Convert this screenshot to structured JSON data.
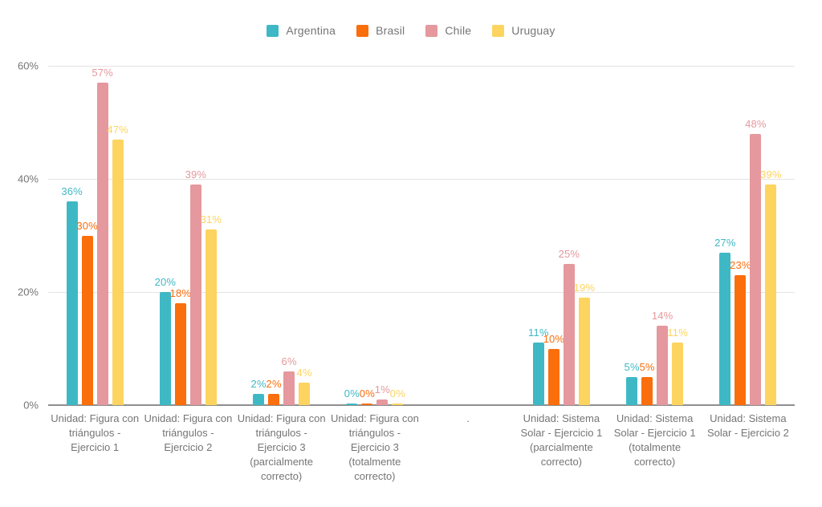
{
  "chart_data": {
    "type": "bar",
    "title": "",
    "xlabel": "",
    "ylabel": "",
    "ylim": [
      0,
      60
    ],
    "grid": true,
    "legend_position": "top",
    "value_suffix": "%",
    "yticks": [
      {
        "label": "0%",
        "value": 0
      },
      {
        "label": "20%",
        "value": 20
      },
      {
        "label": "40%",
        "value": 40
      },
      {
        "label": "60%",
        "value": 60
      }
    ],
    "categories": [
      "Unidad: Figura con triángulos - Ejercicio 1",
      "Unidad: Figura con triángulos - Ejercicio 2",
      "Unidad: Figura con triángulos - Ejercicio 3 (parcialmente correcto)",
      "Unidad: Figura con triángulos - Ejercicio 3 (totalmente correcto)",
      ".",
      "Unidad: Sistema Solar - Ejercicio 1 (parcialmente correcto)",
      "Unidad: Sistema Solar - Ejercicio 1 (totalmente correcto)",
      "Unidad: Sistema Solar - Ejercicio 2"
    ],
    "series": [
      {
        "name": "Argentina",
        "color": "#3fb8c5",
        "values": [
          36,
          20,
          2,
          0,
          null,
          11,
          5,
          27
        ]
      },
      {
        "name": "Brasil",
        "color": "#fa6e0b",
        "values": [
          30,
          18,
          2,
          0,
          null,
          10,
          5,
          23
        ]
      },
      {
        "name": "Chile",
        "color": "#e5989d",
        "values": [
          57,
          39,
          6,
          1,
          null,
          25,
          14,
          48
        ]
      },
      {
        "name": "Uruguay",
        "color": "#fcd45f",
        "values": [
          47,
          31,
          4,
          0,
          null,
          19,
          11,
          39
        ]
      }
    ],
    "colors": {
      "gridline": "#e3e3e3",
      "axis_line": "#8f8f8f",
      "text": "#757575"
    }
  }
}
